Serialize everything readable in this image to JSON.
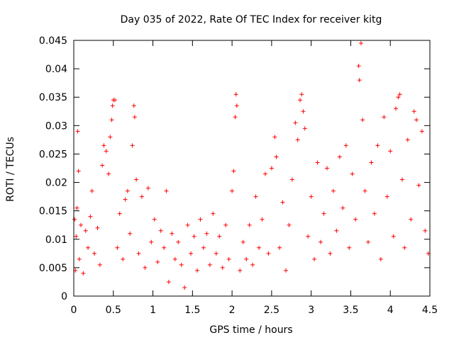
{
  "chart_data": {
    "type": "scatter",
    "title": "Day 035 of 2022, Rate Of TEC Index for receiver kitg",
    "xlabel": "GPS time / hours",
    "ylabel": "ROTI / TECUs",
    "xlim": [
      0,
      4.5
    ],
    "ylim": [
      0,
      0.045
    ],
    "grid": false,
    "marker": "+",
    "series_color": "#ff0000",
    "x_ticks": [
      0,
      0.5,
      1,
      1.5,
      2,
      2.5,
      3,
      3.5,
      4,
      4.5
    ],
    "x_tick_labels": [
      "0",
      "0.5",
      "1",
      "1.5",
      "2",
      "2.5",
      "3",
      "3.5",
      "4",
      "4.5"
    ],
    "y_ticks": [
      0,
      0.005,
      0.01,
      0.015,
      0.02,
      0.025,
      0.03,
      0.035,
      0.04,
      0.045
    ],
    "y_tick_labels": [
      "0",
      "0.005",
      "0.01",
      "0.015",
      "0.02",
      "0.025",
      "0.03",
      "0.035",
      "0.04",
      "0.045"
    ],
    "series": [
      {
        "name": "ROTI",
        "points": [
          [
            0.01,
            0.0135
          ],
          [
            0.02,
            0.0045
          ],
          [
            0.03,
            0.0105
          ],
          [
            0.04,
            0.0155
          ],
          [
            0.05,
            0.029
          ],
          [
            0.06,
            0.022
          ],
          [
            0.07,
            0.0065
          ],
          [
            0.09,
            0.0125
          ],
          [
            0.12,
            0.004
          ],
          [
            0.15,
            0.0115
          ],
          [
            0.18,
            0.0085
          ],
          [
            0.21,
            0.014
          ],
          [
            0.23,
            0.0185
          ],
          [
            0.26,
            0.0075
          ],
          [
            0.3,
            0.012
          ],
          [
            0.33,
            0.0055
          ],
          [
            0.36,
            0.023
          ],
          [
            0.38,
            0.0265
          ],
          [
            0.41,
            0.0255
          ],
          [
            0.44,
            0.0215
          ],
          [
            0.46,
            0.028
          ],
          [
            0.48,
            0.031
          ],
          [
            0.49,
            0.0335
          ],
          [
            0.5,
            0.0345
          ],
          [
            0.52,
            0.0345
          ],
          [
            0.55,
            0.0085
          ],
          [
            0.58,
            0.0145
          ],
          [
            0.62,
            0.0065
          ],
          [
            0.65,
            0.017
          ],
          [
            0.68,
            0.0185
          ],
          [
            0.71,
            0.011
          ],
          [
            0.74,
            0.0265
          ],
          [
            0.76,
            0.0335
          ],
          [
            0.77,
            0.0315
          ],
          [
            0.79,
            0.0205
          ],
          [
            0.82,
            0.0075
          ],
          [
            0.86,
            0.0175
          ],
          [
            0.9,
            0.005
          ],
          [
            0.94,
            0.019
          ],
          [
            0.98,
            0.0095
          ],
          [
            1.02,
            0.0135
          ],
          [
            1.06,
            0.006
          ],
          [
            1.1,
            0.0115
          ],
          [
            1.14,
            0.0085
          ],
          [
            1.17,
            0.0185
          ],
          [
            1.2,
            0.0025
          ],
          [
            1.24,
            0.011
          ],
          [
            1.28,
            0.0065
          ],
          [
            1.32,
            0.0095
          ],
          [
            1.36,
            0.0055
          ],
          [
            1.4,
            0.0015
          ],
          [
            1.44,
            0.0125
          ],
          [
            1.48,
            0.0075
          ],
          [
            1.52,
            0.0105
          ],
          [
            1.56,
            0.0045
          ],
          [
            1.6,
            0.0135
          ],
          [
            1.64,
            0.0085
          ],
          [
            1.68,
            0.011
          ],
          [
            1.72,
            0.0055
          ],
          [
            1.76,
            0.0145
          ],
          [
            1.8,
            0.0075
          ],
          [
            1.84,
            0.0105
          ],
          [
            1.88,
            0.005
          ],
          [
            1.92,
            0.0125
          ],
          [
            1.96,
            0.0065
          ],
          [
            2.0,
            0.0185
          ],
          [
            2.02,
            0.022
          ],
          [
            2.04,
            0.0315
          ],
          [
            2.05,
            0.0355
          ],
          [
            2.06,
            0.0335
          ],
          [
            2.1,
            0.0045
          ],
          [
            2.14,
            0.0095
          ],
          [
            2.18,
            0.0065
          ],
          [
            2.22,
            0.0125
          ],
          [
            2.26,
            0.0055
          ],
          [
            2.3,
            0.0175
          ],
          [
            2.34,
            0.0085
          ],
          [
            2.38,
            0.0135
          ],
          [
            2.42,
            0.0215
          ],
          [
            2.46,
            0.0075
          ],
          [
            2.5,
            0.0225
          ],
          [
            2.54,
            0.028
          ],
          [
            2.56,
            0.0245
          ],
          [
            2.6,
            0.0085
          ],
          [
            2.64,
            0.0165
          ],
          [
            2.68,
            0.0045
          ],
          [
            2.72,
            0.0125
          ],
          [
            2.76,
            0.0205
          ],
          [
            2.8,
            0.0305
          ],
          [
            2.83,
            0.0275
          ],
          [
            2.86,
            0.0345
          ],
          [
            2.88,
            0.0355
          ],
          [
            2.9,
            0.0325
          ],
          [
            2.92,
            0.0295
          ],
          [
            2.96,
            0.0105
          ],
          [
            3.0,
            0.0175
          ],
          [
            3.04,
            0.0065
          ],
          [
            3.08,
            0.0235
          ],
          [
            3.12,
            0.0095
          ],
          [
            3.16,
            0.0145
          ],
          [
            3.2,
            0.0225
          ],
          [
            3.24,
            0.0075
          ],
          [
            3.28,
            0.0185
          ],
          [
            3.32,
            0.0115
          ],
          [
            3.36,
            0.0245
          ],
          [
            3.4,
            0.0155
          ],
          [
            3.44,
            0.0265
          ],
          [
            3.48,
            0.0085
          ],
          [
            3.52,
            0.0215
          ],
          [
            3.56,
            0.0135
          ],
          [
            3.6,
            0.0405
          ],
          [
            3.61,
            0.038
          ],
          [
            3.63,
            0.0445
          ],
          [
            3.65,
            0.031
          ],
          [
            3.68,
            0.0185
          ],
          [
            3.72,
            0.0095
          ],
          [
            3.76,
            0.0235
          ],
          [
            3.8,
            0.0145
          ],
          [
            3.84,
            0.0265
          ],
          [
            3.88,
            0.0065
          ],
          [
            3.92,
            0.0315
          ],
          [
            3.96,
            0.0175
          ],
          [
            4.0,
            0.0255
          ],
          [
            4.04,
            0.0105
          ],
          [
            4.07,
            0.033
          ],
          [
            4.1,
            0.035
          ],
          [
            4.12,
            0.0355
          ],
          [
            4.15,
            0.0205
          ],
          [
            4.18,
            0.0085
          ],
          [
            4.22,
            0.0275
          ],
          [
            4.26,
            0.0135
          ],
          [
            4.3,
            0.0325
          ],
          [
            4.33,
            0.031
          ],
          [
            4.36,
            0.0195
          ],
          [
            4.4,
            0.029
          ],
          [
            4.44,
            0.0115
          ],
          [
            4.48,
            0.0075
          ]
        ]
      }
    ]
  }
}
